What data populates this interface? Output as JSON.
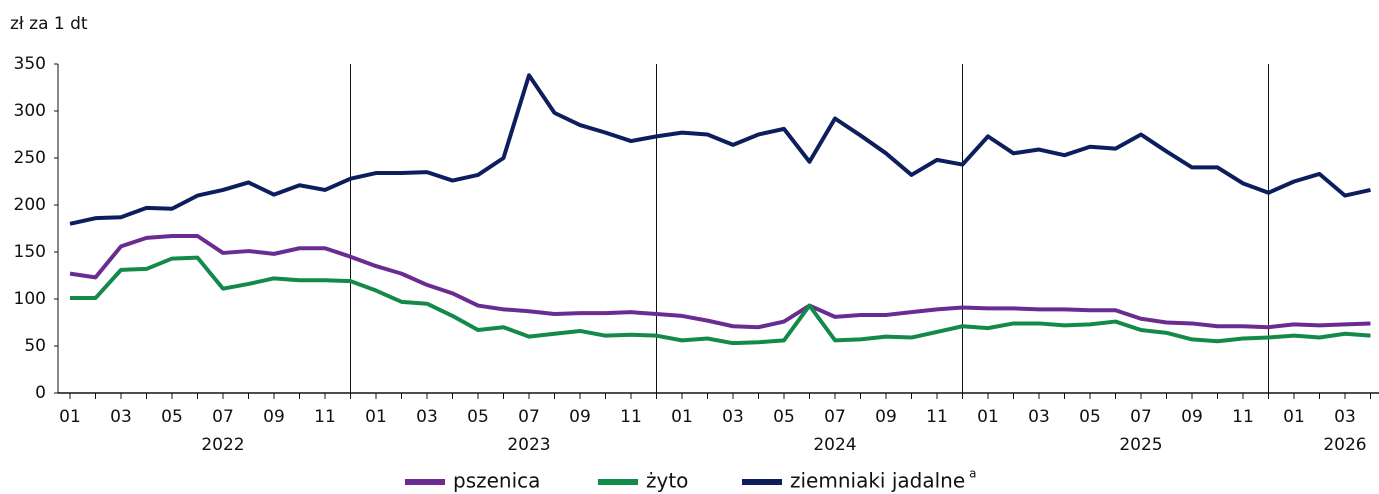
{
  "chart_data": {
    "type": "line",
    "y_axis_label": "zł za 1 dt",
    "categories": [
      "01",
      null,
      "03",
      null,
      "05",
      null,
      "07",
      null,
      "09",
      null,
      "11",
      null,
      "01",
      null,
      "03",
      null,
      "05",
      null,
      "07",
      null,
      "09",
      null,
      "11",
      null,
      "01",
      null,
      "03",
      null,
      "05",
      null,
      "07",
      null,
      "09",
      null,
      "11",
      null,
      "01",
      null,
      "03",
      null,
      "05",
      null,
      "07",
      null,
      "09",
      null,
      "11",
      null,
      "01",
      null,
      "03",
      null
    ],
    "years": [
      "2022",
      "2023",
      "2024",
      "2025",
      "2026"
    ],
    "ylim": [
      0,
      350
    ],
    "yticks": [
      0,
      50,
      100,
      150,
      200,
      250,
      300,
      350
    ],
    "series": [
      {
        "name": "pszenica",
        "color": "#6a2c91",
        "values": [
          127,
          123,
          156,
          165,
          167,
          167,
          149,
          151,
          148,
          154,
          154,
          145,
          135,
          127,
          115,
          106,
          93,
          89,
          87,
          84,
          85,
          85,
          86,
          84,
          82,
          77,
          71,
          70,
          76,
          93,
          81,
          83,
          83,
          86,
          89,
          91,
          90,
          90,
          89,
          89,
          88,
          88,
          79,
          75,
          74,
          71,
          71,
          70,
          73,
          72,
          73,
          74
        ]
      },
      {
        "name": "żyto",
        "color": "#138a4a",
        "values": [
          101,
          101,
          131,
          132,
          143,
          144,
          111,
          116,
          122,
          120,
          120,
          119,
          109,
          97,
          95,
          82,
          67,
          70,
          60,
          63,
          66,
          61,
          62,
          61,
          56,
          58,
          53,
          54,
          56,
          93,
          56,
          57,
          60,
          59,
          65,
          71,
          69,
          74,
          74,
          72,
          73,
          76,
          67,
          64,
          57,
          55,
          58,
          59,
          61,
          59,
          63,
          61
        ]
      },
      {
        "name": "ziemniaki jadalne",
        "superscript": "a",
        "color": "#0d1e5e",
        "values": [
          180,
          186,
          187,
          197,
          196,
          210,
          216,
          224,
          211,
          221,
          216,
          228,
          234,
          234,
          235,
          226,
          232,
          250,
          338,
          298,
          285,
          277,
          268,
          273,
          277,
          275,
          264,
          275,
          281,
          246,
          292,
          274,
          255,
          232,
          248,
          243,
          273,
          255,
          259,
          253,
          262,
          260,
          275,
          257,
          240,
          240,
          223,
          213,
          225,
          233,
          210,
          216
        ]
      }
    ]
  }
}
